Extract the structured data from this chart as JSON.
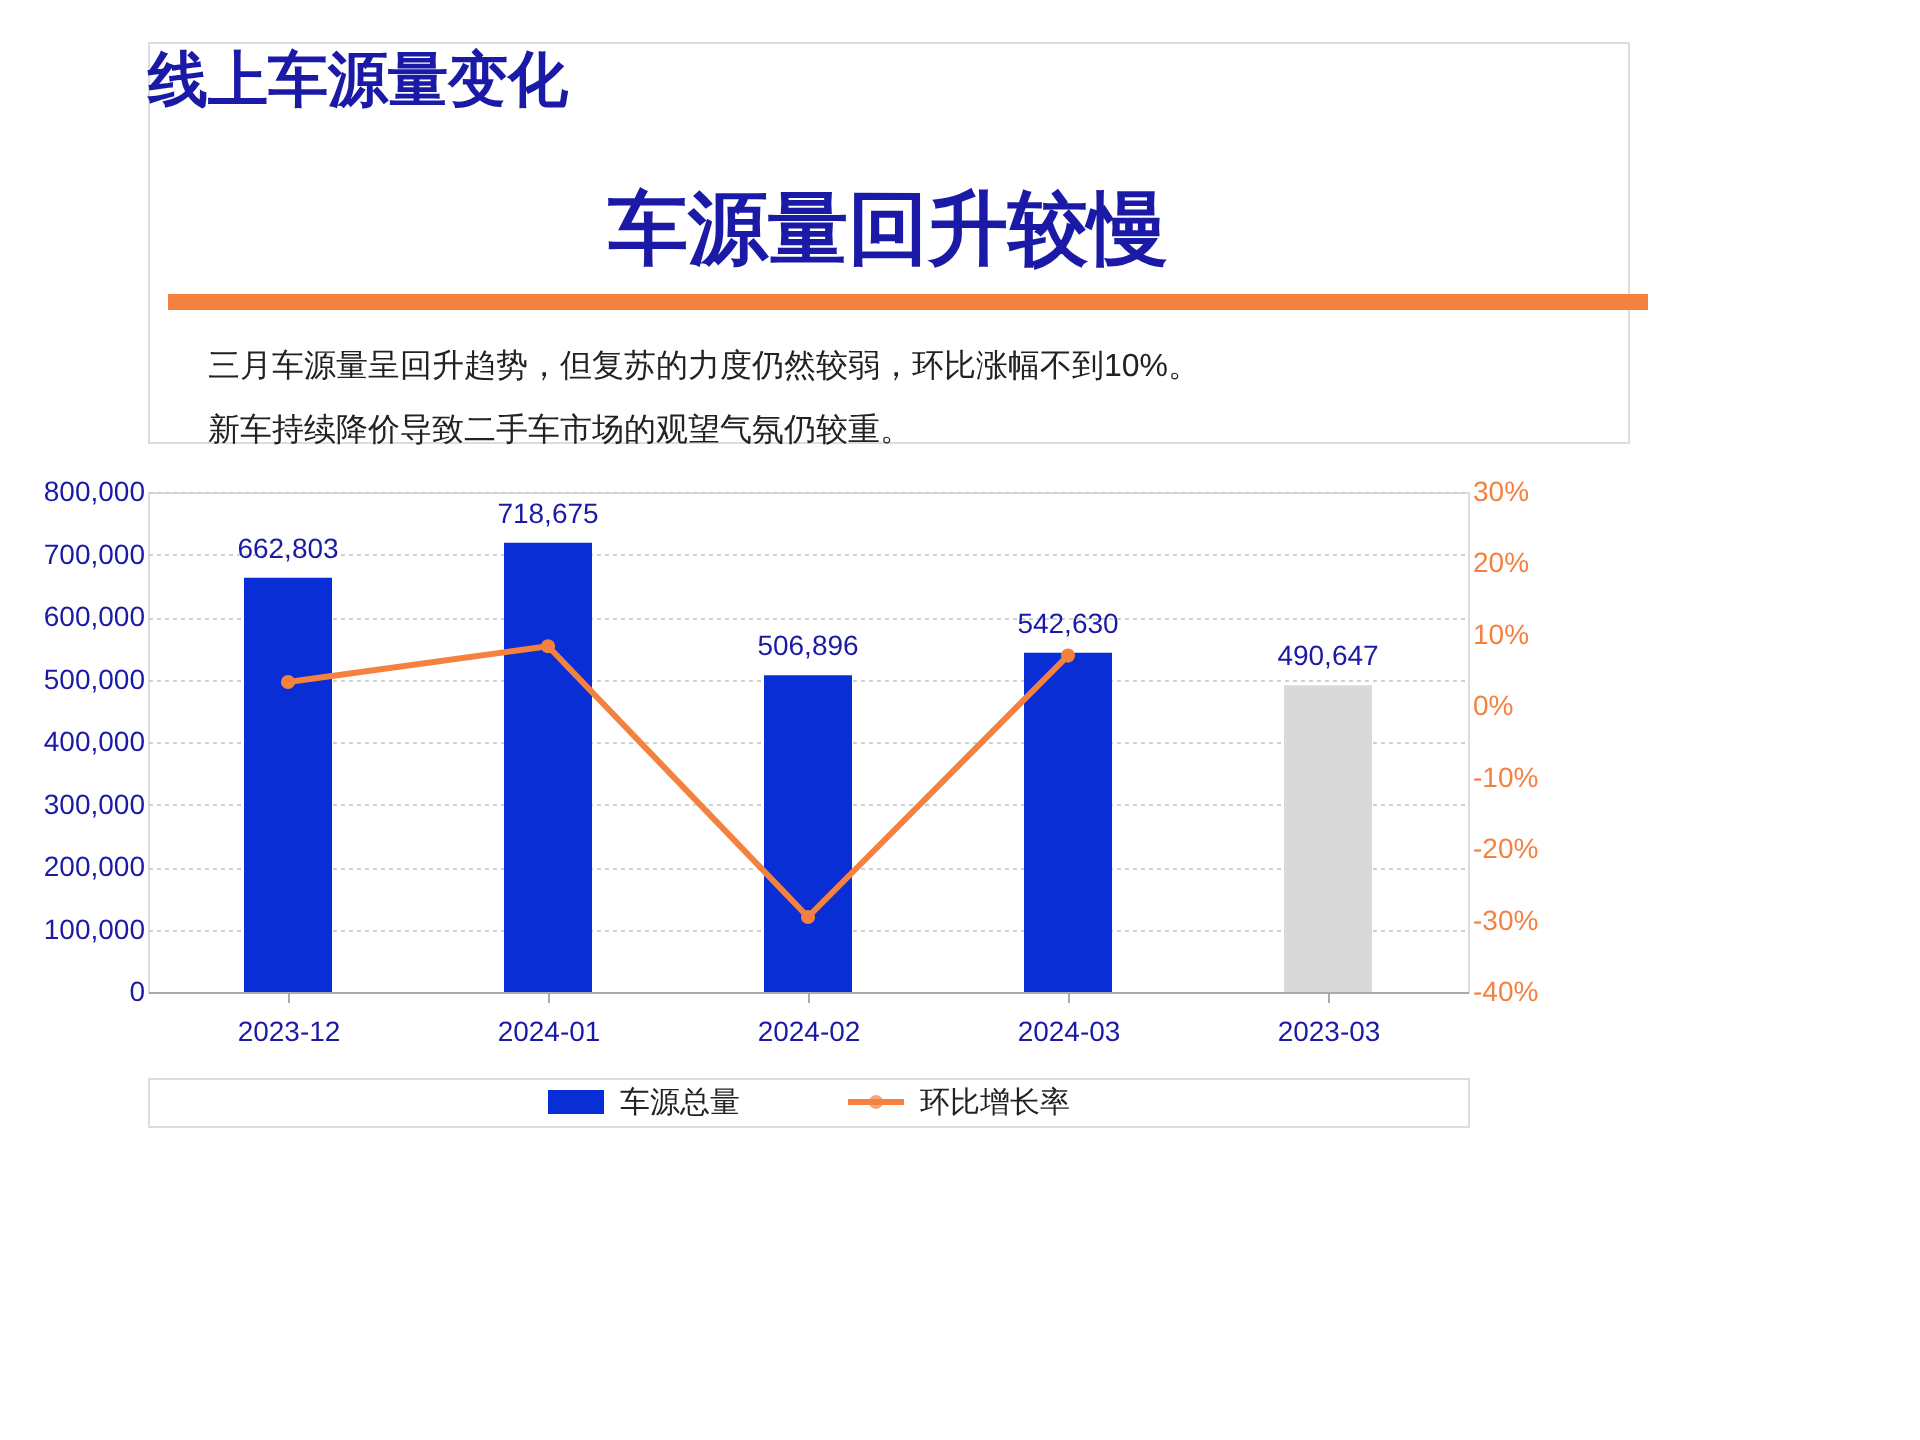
{
  "chart_data": {
    "type": "bar",
    "title": "线上车源量变化",
    "subtitle": "车源量回升较慢",
    "annotations": [
      "三月车源量呈回升趋势，但复苏的力度仍然较弱，环比涨幅不到10%。",
      "新车持续降价导致二手车市场的观望气氛仍较重。"
    ],
    "categories": [
      "2023-12",
      "2024-01",
      "2024-02",
      "2024-03",
      "2023-03"
    ],
    "series": [
      {
        "name": "车源总量",
        "color": "#0a2ed6",
        "colors": [
          "#0a2ed6",
          "#0a2ed6",
          "#0a2ed6",
          "#0a2ed6",
          "#d9d9d9"
        ],
        "values": [
          662803,
          718675,
          506896,
          542630,
          490647
        ],
        "value_labels": [
          "662,803",
          "718,675",
          "506,896",
          "542,630",
          "490,647"
        ]
      },
      {
        "name": "环比增长率",
        "type": "line",
        "axis": "y2",
        "color": "#f5813f",
        "values": [
          3.4,
          8.4,
          -29.5,
          7.1,
          null
        ]
      }
    ],
    "ylim": [
      0,
      800000
    ],
    "yticks": [
      0,
      {
        "value": 100000,
        "label": "100,000"
      },
      {
        "value": 200000,
        "label": "200,000"
      },
      {
        "value": 300000,
        "label": "300,000"
      },
      {
        "value": 400000,
        "label": "400,000"
      },
      {
        "value": 500000,
        "label": "500,000"
      },
      {
        "value": 600000,
        "label": "600,000"
      },
      {
        "value": 700000,
        "label": "700,000"
      },
      {
        "value": 800000,
        "label": "800,000"
      }
    ],
    "y2lim": [
      -40,
      30
    ],
    "y2ticks": [
      {
        "value": -40,
        "label": "-40%"
      },
      {
        "value": -30,
        "label": "-30%"
      },
      {
        "value": -20,
        "label": "-20%"
      },
      {
        "value": -10,
        "label": "-10%"
      },
      {
        "value": 0,
        "label": "0%"
      },
      {
        "value": 10,
        "label": "10%"
      },
      {
        "value": 20,
        "label": "20%"
      },
      {
        "value": 30,
        "label": "30%"
      }
    ],
    "grid": "y",
    "legend": "bottom",
    "marker": "circle",
    "line_style": "solid"
  }
}
